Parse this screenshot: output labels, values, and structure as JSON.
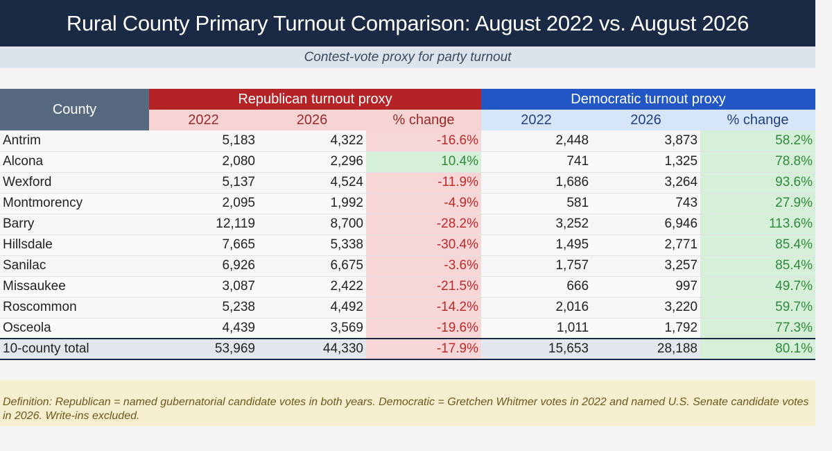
{
  "title": "Rural County Primary Turnout Comparison: August 2022 vs. August 2026",
  "subtitle": "Contest-vote proxy for party turnout",
  "table": {
    "county_header": "County",
    "rep_group": "Republican turnout proxy",
    "dem_group": "Democratic turnout proxy",
    "sub_headers": [
      "2022",
      "2026",
      "% change"
    ],
    "rows": [
      {
        "county": "Antrim",
        "rep_2022": "5,183",
        "rep_2026": "4,322",
        "rep_change": "-16.6%",
        "dem_2022": "2,448",
        "dem_2026": "3,873",
        "dem_change": "58.2%"
      },
      {
        "county": "Alcona",
        "rep_2022": "2,080",
        "rep_2026": "2,296",
        "rep_change": "10.4%",
        "dem_2022": "741",
        "dem_2026": "1,325",
        "dem_change": "78.8%"
      },
      {
        "county": "Wexford",
        "rep_2022": "5,137",
        "rep_2026": "4,524",
        "rep_change": "-11.9%",
        "dem_2022": "1,686",
        "dem_2026": "3,264",
        "dem_change": "93.6%"
      },
      {
        "county": "Montmorency",
        "rep_2022": "2,095",
        "rep_2026": "1,992",
        "rep_change": "-4.9%",
        "dem_2022": "581",
        "dem_2026": "743",
        "dem_change": "27.9%"
      },
      {
        "county": "Barry",
        "rep_2022": "12,119",
        "rep_2026": "8,700",
        "rep_change": "-28.2%",
        "dem_2022": "3,252",
        "dem_2026": "6,946",
        "dem_change": "113.6%"
      },
      {
        "county": "Hillsdale",
        "rep_2022": "7,665",
        "rep_2026": "5,338",
        "rep_change": "-30.4%",
        "dem_2022": "1,495",
        "dem_2026": "2,771",
        "dem_change": "85.4%"
      },
      {
        "county": "Sanilac",
        "rep_2022": "6,926",
        "rep_2026": "6,675",
        "rep_change": "-3.6%",
        "dem_2022": "1,757",
        "dem_2026": "3,257",
        "dem_change": "85.4%"
      },
      {
        "county": "Missaukee",
        "rep_2022": "3,087",
        "rep_2026": "2,422",
        "rep_change": "-21.5%",
        "dem_2022": "666",
        "dem_2026": "997",
        "dem_change": "49.7%"
      },
      {
        "county": "Roscommon",
        "rep_2022": "5,238",
        "rep_2026": "4,492",
        "rep_change": "-14.2%",
        "dem_2022": "2,016",
        "dem_2026": "3,220",
        "dem_change": "59.7%"
      },
      {
        "county": "Osceola",
        "rep_2022": "4,439",
        "rep_2026": "3,569",
        "rep_change": "-19.6%",
        "dem_2022": "1,011",
        "dem_2026": "1,792",
        "dem_change": "77.3%"
      }
    ],
    "total": {
      "county": "10-county total",
      "rep_2022": "53,969",
      "rep_2026": "44,330",
      "rep_change": "-17.9%",
      "dem_2022": "15,653",
      "dem_2026": "28,188",
      "dem_change": "80.1%"
    }
  },
  "definition": "Definition: Republican = named gubernatorial candidate votes in both years. Democratic = Gretchen Whitmer votes in 2022 and named U.S. Senate candidate votes in 2026. Write-ins excluded.",
  "colors": {
    "title_bg": "#1b2a44",
    "republican": "#b52327",
    "democratic": "#2356c5",
    "negative_fill": "#f6d6d6",
    "positive_fill": "#d5efd9"
  }
}
